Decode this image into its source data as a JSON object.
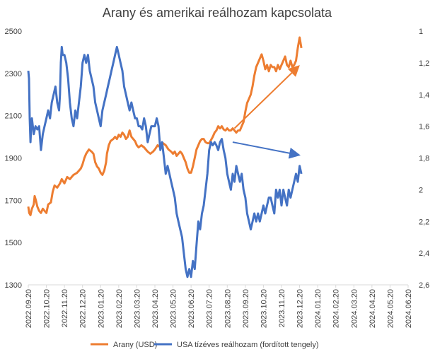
{
  "chart_data": {
    "type": "line",
    "title": "Arany és amerikai reálhozam kapcsolata",
    "x": [
      "2022.09.20",
      "2022.10.20",
      "2022.11.20",
      "2022.12.20",
      "2023.01.20",
      "2023.02.20",
      "2023.03.20",
      "2023.04.20",
      "2023.05.20",
      "2023.06.20",
      "2023.07.20",
      "2023.08.20",
      "2023.09.20",
      "2023.10.20",
      "2023.11.20",
      "2023.12.20",
      "2024.01.20",
      "2024.02.20",
      "2024.03.20",
      "2024.04.20",
      "2024.05.20",
      "2024.06.20"
    ],
    "y_left": {
      "min": 1300,
      "max": 2500,
      "ticks": [
        "1300",
        "1500",
        "1700",
        "1900",
        "2100",
        "2300",
        "2500"
      ]
    },
    "y_right": {
      "min": 1,
      "max": 2.6,
      "inverted": true,
      "ticks": [
        "1",
        "1,2",
        "1,4",
        "1,6",
        "1,8",
        "2",
        "2,2",
        "2,4",
        "2,6"
      ]
    },
    "series": [
      {
        "name": "Arany (USD)",
        "color": "#ED7D31",
        "axis": "left",
        "points": [
          [
            0,
            1670
          ],
          [
            0.05,
            1640
          ],
          [
            0.12,
            1630
          ],
          [
            0.2,
            1660
          ],
          [
            0.3,
            1680
          ],
          [
            0.35,
            1720
          ],
          [
            0.42,
            1700
          ],
          [
            0.5,
            1670
          ],
          [
            0.6,
            1650
          ],
          [
            0.7,
            1640
          ],
          [
            0.8,
            1660
          ],
          [
            0.9,
            1650
          ],
          [
            1.0,
            1640
          ],
          [
            1.1,
            1680
          ],
          [
            1.25,
            1690
          ],
          [
            1.35,
            1740
          ],
          [
            1.45,
            1770
          ],
          [
            1.6,
            1760
          ],
          [
            1.75,
            1780
          ],
          [
            1.85,
            1800
          ],
          [
            2.0,
            1780
          ],
          [
            2.15,
            1810
          ],
          [
            2.3,
            1800
          ],
          [
            2.5,
            1820
          ],
          [
            2.7,
            1830
          ],
          [
            2.9,
            1850
          ],
          [
            3.0,
            1870
          ],
          [
            3.1,
            1900
          ],
          [
            3.2,
            1920
          ],
          [
            3.35,
            1940
          ],
          [
            3.5,
            1930
          ],
          [
            3.6,
            1920
          ],
          [
            3.7,
            1880
          ],
          [
            3.8,
            1860
          ],
          [
            3.9,
            1850
          ],
          [
            4.0,
            1830
          ],
          [
            4.1,
            1820
          ],
          [
            4.2,
            1840
          ],
          [
            4.3,
            1880
          ],
          [
            4.35,
            1920
          ],
          [
            4.45,
            1960
          ],
          [
            4.55,
            1980
          ],
          [
            4.7,
            1990
          ],
          [
            4.8,
            2000
          ],
          [
            4.9,
            1990
          ],
          [
            5.0,
            2010
          ],
          [
            5.1,
            2000
          ],
          [
            5.2,
            2020
          ],
          [
            5.3,
            2010
          ],
          [
            5.4,
            1990
          ],
          [
            5.5,
            2000
          ],
          [
            5.6,
            2030
          ],
          [
            5.7,
            2000
          ],
          [
            5.8,
            1990
          ],
          [
            5.9,
            1980
          ],
          [
            6.0,
            1960
          ],
          [
            6.1,
            1950
          ],
          [
            6.25,
            1960
          ],
          [
            6.4,
            1950
          ],
          [
            6.5,
            1940
          ],
          [
            6.6,
            1930
          ],
          [
            6.75,
            1920
          ],
          [
            6.9,
            1930
          ],
          [
            7.0,
            1940
          ],
          [
            7.15,
            1960
          ],
          [
            7.3,
            1950
          ],
          [
            7.45,
            1970
          ],
          [
            7.6,
            1960
          ],
          [
            7.75,
            1940
          ],
          [
            7.9,
            1930
          ],
          [
            8.0,
            1920
          ],
          [
            8.1,
            1930
          ],
          [
            8.2,
            1910
          ],
          [
            8.3,
            1920
          ],
          [
            8.4,
            1930
          ],
          [
            8.5,
            1920
          ],
          [
            8.6,
            1900
          ],
          [
            8.7,
            1880
          ],
          [
            8.8,
            1850
          ],
          [
            8.9,
            1830
          ],
          [
            9.0,
            1830
          ],
          [
            9.1,
            1860
          ],
          [
            9.2,
            1900
          ],
          [
            9.3,
            1940
          ],
          [
            9.4,
            1960
          ],
          [
            9.5,
            1980
          ],
          [
            9.6,
            1990
          ],
          [
            9.7,
            1990
          ],
          [
            9.8,
            1975
          ],
          [
            9.9,
            1970
          ],
          [
            10.0,
            1970
          ],
          [
            10.1,
            1985
          ],
          [
            10.2,
            2000
          ],
          [
            10.3,
            2020
          ],
          [
            10.4,
            2030
          ],
          [
            10.5,
            2050
          ],
          [
            10.6,
            2040
          ],
          [
            10.7,
            2050
          ],
          [
            10.8,
            2035
          ],
          [
            10.9,
            2030
          ],
          [
            11.0,
            2040
          ],
          [
            11.1,
            2030
          ],
          [
            11.2,
            2030
          ],
          [
            11.3,
            2040
          ],
          [
            11.4,
            2030
          ],
          [
            11.5,
            2020
          ],
          [
            11.6,
            2030
          ],
          [
            11.7,
            2030
          ],
          [
            11.8,
            2050
          ],
          [
            11.9,
            2070
          ],
          [
            12.0,
            2120
          ],
          [
            12.1,
            2160
          ],
          [
            12.2,
            2180
          ],
          [
            12.3,
            2200
          ],
          [
            12.4,
            2240
          ],
          [
            12.5,
            2290
          ],
          [
            12.6,
            2330
          ],
          [
            12.7,
            2350
          ],
          [
            12.8,
            2370
          ],
          [
            12.9,
            2390
          ],
          [
            13.0,
            2360
          ],
          [
            13.1,
            2320
          ],
          [
            13.2,
            2340
          ],
          [
            13.3,
            2310
          ],
          [
            13.4,
            2340
          ],
          [
            13.5,
            2330
          ],
          [
            13.6,
            2330
          ],
          [
            13.7,
            2310
          ],
          [
            13.8,
            2340
          ],
          [
            13.9,
            2320
          ],
          [
            14.0,
            2340
          ],
          [
            14.1,
            2360
          ],
          [
            14.2,
            2380
          ],
          [
            14.3,
            2340
          ],
          [
            14.4,
            2330
          ],
          [
            14.5,
            2360
          ],
          [
            14.6,
            2330
          ],
          [
            14.7,
            2340
          ],
          [
            14.8,
            2360
          ],
          [
            14.9,
            2420
          ],
          [
            15.0,
            2470
          ],
          [
            15.1,
            2420
          ]
        ]
      },
      {
        "name": "USA tízéves reálhozam (fordított tengely)",
        "color": "#4472C4",
        "axis": "right",
        "points": [
          [
            0,
            1.25
          ],
          [
            0.04,
            1.3
          ],
          [
            0.08,
            1.55
          ],
          [
            0.12,
            1.7
          ],
          [
            0.16,
            1.6
          ],
          [
            0.2,
            1.55
          ],
          [
            0.25,
            1.6
          ],
          [
            0.3,
            1.65
          ],
          [
            0.4,
            1.6
          ],
          [
            0.5,
            1.62
          ],
          [
            0.6,
            1.6
          ],
          [
            0.7,
            1.75
          ],
          [
            0.8,
            1.65
          ],
          [
            0.9,
            1.6
          ],
          [
            1.0,
            1.55
          ],
          [
            1.1,
            1.5
          ],
          [
            1.2,
            1.55
          ],
          [
            1.3,
            1.45
          ],
          [
            1.4,
            1.4
          ],
          [
            1.5,
            1.35
          ],
          [
            1.6,
            1.45
          ],
          [
            1.7,
            1.5
          ],
          [
            1.75,
            1.4
          ],
          [
            1.8,
            1.2
          ],
          [
            1.85,
            1.1
          ],
          [
            1.9,
            1.15
          ],
          [
            2.0,
            1.15
          ],
          [
            2.1,
            1.2
          ],
          [
            2.2,
            1.3
          ],
          [
            2.3,
            1.45
          ],
          [
            2.4,
            1.55
          ],
          [
            2.5,
            1.6
          ],
          [
            2.6,
            1.5
          ],
          [
            2.7,
            1.55
          ],
          [
            2.8,
            1.45
          ],
          [
            2.9,
            1.35
          ],
          [
            3.0,
            1.2
          ],
          [
            3.1,
            1.15
          ],
          [
            3.2,
            1.2
          ],
          [
            3.3,
            1.15
          ],
          [
            3.4,
            1.25
          ],
          [
            3.5,
            1.3
          ],
          [
            3.6,
            1.35
          ],
          [
            3.7,
            1.45
          ],
          [
            3.8,
            1.5
          ],
          [
            3.9,
            1.55
          ],
          [
            4.0,
            1.6
          ],
          [
            4.1,
            1.5
          ],
          [
            4.2,
            1.45
          ],
          [
            4.3,
            1.4
          ],
          [
            4.4,
            1.35
          ],
          [
            4.5,
            1.3
          ],
          [
            4.6,
            1.25
          ],
          [
            4.7,
            1.2
          ],
          [
            4.8,
            1.15
          ],
          [
            4.9,
            1.1
          ],
          [
            5.0,
            1.15
          ],
          [
            5.1,
            1.2
          ],
          [
            5.2,
            1.25
          ],
          [
            5.3,
            1.35
          ],
          [
            5.4,
            1.4
          ],
          [
            5.5,
            1.45
          ],
          [
            5.6,
            1.5
          ],
          [
            5.7,
            1.45
          ],
          [
            5.8,
            1.5
          ],
          [
            5.9,
            1.55
          ],
          [
            6.0,
            1.55
          ],
          [
            6.1,
            1.6
          ],
          [
            6.2,
            1.6
          ],
          [
            6.3,
            1.62
          ],
          [
            6.4,
            1.55
          ],
          [
            6.5,
            1.6
          ],
          [
            6.6,
            1.7
          ],
          [
            6.7,
            1.65
          ],
          [
            6.8,
            1.6
          ],
          [
            6.9,
            1.6
          ],
          [
            7.0,
            1.6
          ],
          [
            7.1,
            1.55
          ],
          [
            7.2,
            1.6
          ],
          [
            7.3,
            1.75
          ],
          [
            7.4,
            1.7
          ],
          [
            7.5,
            1.8
          ],
          [
            7.6,
            1.9
          ],
          [
            7.7,
            1.85
          ],
          [
            7.8,
            1.9
          ],
          [
            7.9,
            1.95
          ],
          [
            8.0,
            2.0
          ],
          [
            8.1,
            2.05
          ],
          [
            8.2,
            2.15
          ],
          [
            8.3,
            2.2
          ],
          [
            8.4,
            2.25
          ],
          [
            8.5,
            2.3
          ],
          [
            8.6,
            2.4
          ],
          [
            8.7,
            2.5
          ],
          [
            8.8,
            2.55
          ],
          [
            8.9,
            2.5
          ],
          [
            9.0,
            2.55
          ],
          [
            9.1,
            2.45
          ],
          [
            9.2,
            2.5
          ],
          [
            9.3,
            2.35
          ],
          [
            9.4,
            2.2
          ],
          [
            9.5,
            2.25
          ],
          [
            9.6,
            2.15
          ],
          [
            9.7,
            2.1
          ],
          [
            9.8,
            2.0
          ],
          [
            9.9,
            1.9
          ],
          [
            10.0,
            1.75
          ],
          [
            10.1,
            1.7
          ],
          [
            10.2,
            1.72
          ],
          [
            10.3,
            1.7
          ],
          [
            10.4,
            1.72
          ],
          [
            10.5,
            1.75
          ],
          [
            10.6,
            1.7
          ],
          [
            10.7,
            1.68
          ],
          [
            10.8,
            1.75
          ],
          [
            10.9,
            1.8
          ],
          [
            11.0,
            1.9
          ],
          [
            11.1,
            1.95
          ],
          [
            11.2,
            2.0
          ],
          [
            11.3,
            1.9
          ],
          [
            11.4,
            1.95
          ],
          [
            11.5,
            1.85
          ],
          [
            11.6,
            1.9
          ],
          [
            11.7,
            1.95
          ],
          [
            11.8,
            1.9
          ],
          [
            11.9,
            2.0
          ],
          [
            12.0,
            2.05
          ],
          [
            12.1,
            2.15
          ],
          [
            12.2,
            2.2
          ],
          [
            12.3,
            2.25
          ],
          [
            12.4,
            2.2
          ],
          [
            12.5,
            2.15
          ],
          [
            12.6,
            2.2
          ],
          [
            12.7,
            2.15
          ],
          [
            12.8,
            2.2
          ],
          [
            12.9,
            2.15
          ],
          [
            13.0,
            2.1
          ],
          [
            13.1,
            2.15
          ],
          [
            13.2,
            2.1
          ],
          [
            13.3,
            2.05
          ],
          [
            13.4,
            2.05
          ],
          [
            13.5,
            2.1
          ],
          [
            13.6,
            2.15
          ],
          [
            13.7,
            2.0
          ],
          [
            13.8,
            2.05
          ],
          [
            13.9,
            2.0
          ],
          [
            14.0,
            2.1
          ],
          [
            14.1,
            2.0
          ],
          [
            14.2,
            2.05
          ],
          [
            14.3,
            2.1
          ],
          [
            14.4,
            2.0
          ],
          [
            14.5,
            2.05
          ],
          [
            14.6,
            2.0
          ],
          [
            14.7,
            1.95
          ],
          [
            14.8,
            1.9
          ],
          [
            14.9,
            1.95
          ],
          [
            15.0,
            1.85
          ],
          [
            15.1,
            1.9
          ]
        ]
      }
    ],
    "annotations": [
      {
        "type": "arrow",
        "color": "#ED7D31",
        "from": [
          11.4,
          2040
        ],
        "to": [
          14.9,
          2330
        ]
      },
      {
        "type": "arrow",
        "color": "#4472C4",
        "from": [
          11.3,
          1.7
        ],
        "to": [
          14.9,
          1.78
        ]
      }
    ],
    "grid": false,
    "legend": {
      "position": "bottom",
      "items": [
        {
          "label": "Arany (USD)",
          "color": "#ED7D31"
        },
        {
          "label": "USA tízéves reálhozam (fordított tengely)",
          "color": "#4472C4"
        }
      ]
    }
  }
}
